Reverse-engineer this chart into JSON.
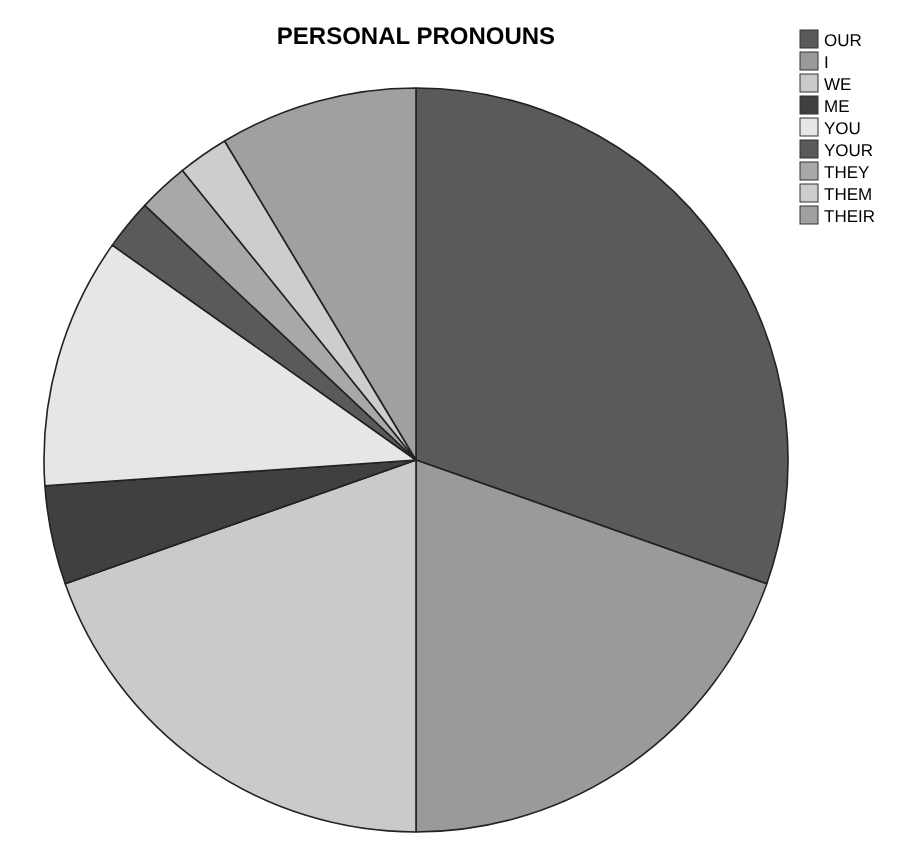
{
  "chart_data": {
    "type": "pie",
    "title": "PERSONAL PRONOUNS",
    "categories": [
      "OUR",
      "I",
      "WE",
      "ME",
      "YOU",
      "YOUR",
      "THEY",
      "THEM",
      "THEIR"
    ],
    "values": [
      30.4,
      19.6,
      19.6,
      4.3,
      10.9,
      2.2,
      2.2,
      2.2,
      8.6
    ],
    "colors": [
      "#5a5a5a",
      "#9a9a9a",
      "#cacaca",
      "#404040",
      "#e6e6e6",
      "#5a5a5a",
      "#a8a8a8",
      "#cdcdcd",
      "#a0a0a0"
    ],
    "legend": "top right"
  }
}
